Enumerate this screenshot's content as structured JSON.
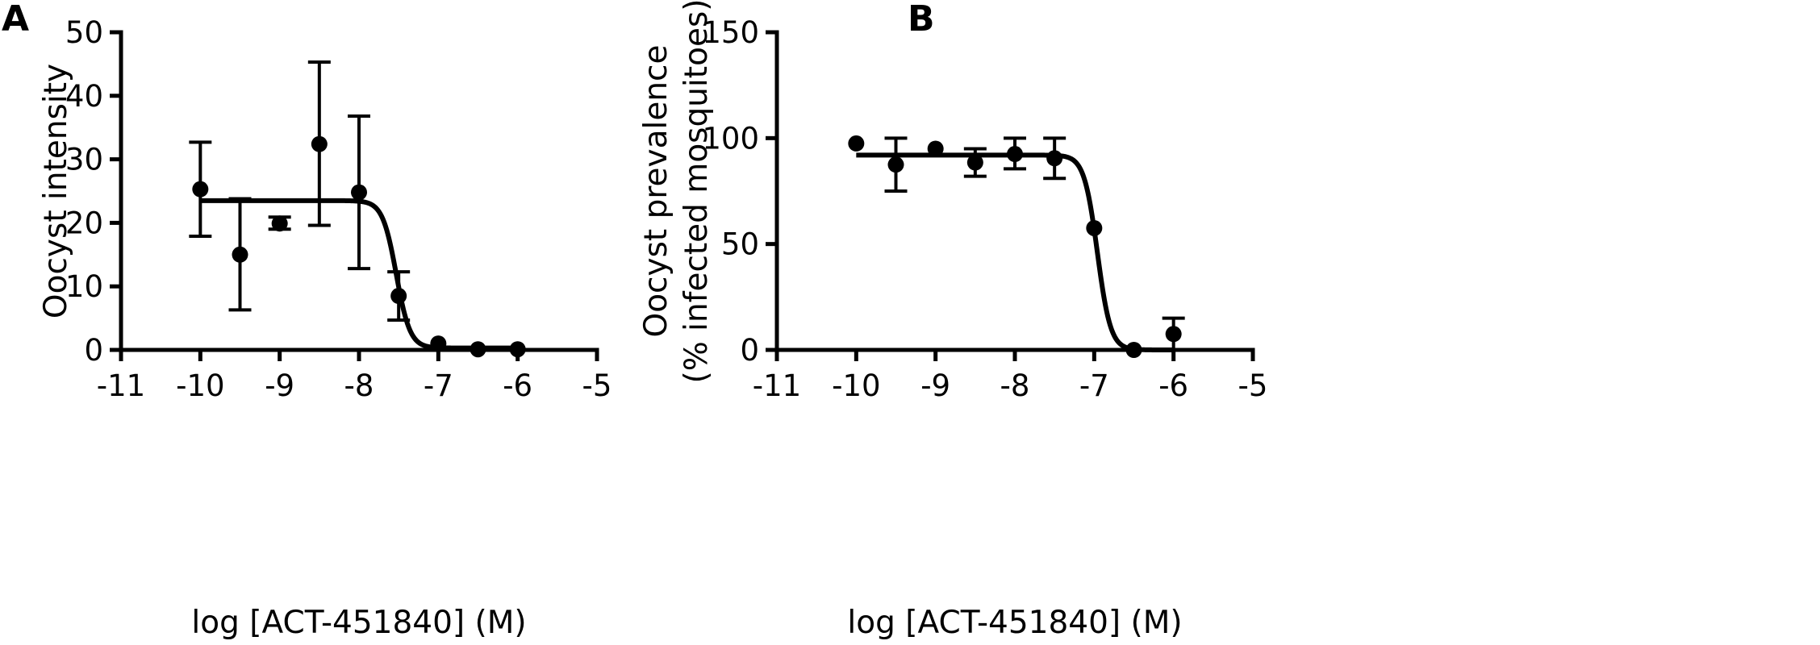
{
  "chart_data": [
    {
      "panel": "A",
      "type": "scatter",
      "xlabel": "log [ACT-451840] (M)",
      "ylabel": "Oocyst intensity",
      "xlim": [
        -11,
        -5
      ],
      "ylim": [
        0,
        50
      ],
      "x_ticks": [
        -11,
        -10,
        -9,
        -8,
        -7,
        -6,
        -5
      ],
      "y_ticks": [
        0,
        10,
        20,
        30,
        40,
        50
      ],
      "points": [
        {
          "x": -10,
          "y": 25.3,
          "y_low": 17.9,
          "y_high": 32.7
        },
        {
          "x": -9.5,
          "y": 15.0,
          "y_low": 6.3,
          "y_high": 23.8
        },
        {
          "x": -9,
          "y": 19.9,
          "y_low": 19.0,
          "y_high": 20.9
        },
        {
          "x": -8.5,
          "y": 32.4,
          "y_low": 19.6,
          "y_high": 45.3
        },
        {
          "x": -8,
          "y": 24.8,
          "y_low": 12.8,
          "y_high": 36.8
        },
        {
          "x": -7.5,
          "y": 8.5,
          "y_low": 4.7,
          "y_high": 12.3
        },
        {
          "x": -7,
          "y": 1.0
        },
        {
          "x": -6.5,
          "y": 0.1
        },
        {
          "x": -6,
          "y": 0.1
        }
      ],
      "fit": {
        "top": 23.5,
        "bottom": 0.3,
        "log_ic50": -7.53,
        "hill_slope": -5.0
      }
    },
    {
      "panel": "B",
      "type": "scatter",
      "xlabel": "log [ACT-451840] (M)",
      "ylabel_line1": "Oocyst prevalence",
      "ylabel_line2": "(% infected mosquitoes)",
      "xlim": [
        -11,
        -5
      ],
      "ylim": [
        0,
        150
      ],
      "x_ticks": [
        -11,
        -10,
        -9,
        -8,
        -7,
        -6,
        -5
      ],
      "y_ticks": [
        0,
        50,
        100,
        150
      ],
      "points": [
        {
          "x": -10,
          "y": 97.5
        },
        {
          "x": -9.5,
          "y": 87.5,
          "y_low": 75,
          "y_high": 100
        },
        {
          "x": -9,
          "y": 95
        },
        {
          "x": -8.5,
          "y": 88.5,
          "y_low": 82,
          "y_high": 95
        },
        {
          "x": -8,
          "y": 92.5,
          "y_low": 85.5,
          "y_high": 100
        },
        {
          "x": -7.5,
          "y": 90.5,
          "y_low": 81,
          "y_high": 100
        },
        {
          "x": -7,
          "y": 57.5
        },
        {
          "x": -6.5,
          "y": 0
        },
        {
          "x": -6,
          "y": 7.5,
          "y_low": 0,
          "y_high": 15
        }
      ],
      "fit": {
        "top": 92.0,
        "bottom": 0.0,
        "log_ic50": -6.96,
        "hill_slope": -5.2
      }
    }
  ]
}
